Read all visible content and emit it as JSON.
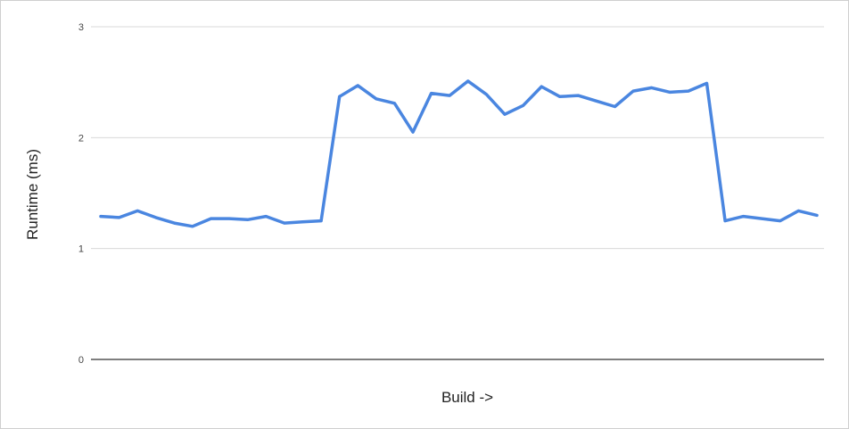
{
  "chart_data": {
    "type": "line",
    "title": "",
    "xlabel": "Build ->",
    "ylabel": "Runtime (ms)",
    "ylim": [
      0,
      3
    ],
    "yticks": [
      "0",
      "1",
      "2",
      "3"
    ],
    "grid": true,
    "legend": "none",
    "colors": {
      "line": "#4a86e0",
      "grid": "#d9d9d9",
      "axis": "#333333"
    },
    "series": [
      {
        "values": [
          1.29,
          1.28,
          1.34,
          1.28,
          1.23,
          1.2,
          1.27,
          1.27,
          1.26,
          1.29,
          1.23,
          1.24,
          1.25,
          2.37,
          2.47,
          2.35,
          2.31,
          2.05,
          2.4,
          2.38,
          2.51,
          2.39,
          2.21,
          2.29,
          2.46,
          2.37,
          2.38,
          2.33,
          2.28,
          2.42,
          2.45,
          2.41,
          2.42,
          2.49,
          1.25,
          1.29,
          1.27,
          1.25,
          1.34,
          1.3
        ]
      }
    ]
  }
}
